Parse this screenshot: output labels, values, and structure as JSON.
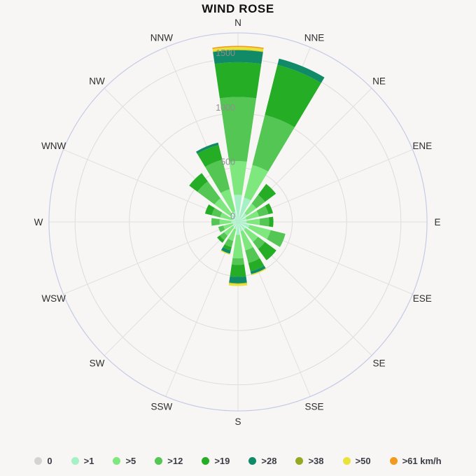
{
  "title": "WIND ROSE",
  "chart_data": {
    "type": "windrose_stacked_polar_bar",
    "title": "WIND ROSE",
    "units": "km/h",
    "radial_ticks": [
      0,
      500,
      1000,
      1500
    ],
    "radial_max": 1740,
    "grid": true,
    "legend_position": "bottom",
    "bins": [
      {
        "label": "0",
        "legend_label": "0",
        "color": "#d7d2d2"
      },
      {
        "label": ">1",
        "legend_label": ">1",
        "color": "#a4f1c5"
      },
      {
        "label": ">5",
        "legend_label": ">5",
        "color": "#7ee87e"
      },
      {
        "label": ">12",
        "legend_label": ">12",
        "color": "#53c653"
      },
      {
        "label": ">19",
        "legend_label": ">19",
        "color": "#25ad25"
      },
      {
        "label": ">28",
        "legend_label": ">28",
        "color": "#108a67"
      },
      {
        "label": ">38",
        "legend_label": ">38",
        "color": "#94aa20"
      },
      {
        "label": ">50",
        "legend_label": ">50",
        "color": "#e9e23a"
      },
      {
        "label": ">61",
        "legend_label": ">61 km/h",
        "color": "#f39a1e"
      }
    ],
    "directions": [
      "N",
      "NNE",
      "NE",
      "ENE",
      "E",
      "ESE",
      "SE",
      "SSE",
      "S",
      "SSW",
      "SW",
      "WSW",
      "W",
      "WNW",
      "NW",
      "NNW"
    ],
    "series": [
      {
        "direction": "N",
        "values": [
          0,
          250,
          310,
          590,
          320,
          110,
          5,
          25,
          10
        ]
      },
      {
        "direction": "NNE",
        "values": [
          0,
          230,
          310,
          475,
          475,
          60,
          0,
          0,
          0
        ]
      },
      {
        "direction": "NE",
        "values": [
          0,
          100,
          110,
          100,
          125,
          0,
          0,
          0,
          0
        ]
      },
      {
        "direction": "ENE",
        "values": [
          0,
          80,
          120,
          90,
          42,
          0,
          0,
          0,
          0
        ]
      },
      {
        "direction": "E",
        "values": [
          0,
          80,
          120,
          86,
          40,
          0,
          0,
          0,
          0
        ]
      },
      {
        "direction": "ESE",
        "values": [
          0,
          110,
          200,
          140,
          0,
          0,
          0,
          0,
          0
        ]
      },
      {
        "direction": "SE",
        "values": [
          0,
          90,
          140,
          80,
          130,
          0,
          0,
          0,
          0
        ]
      },
      {
        "direction": "SSE",
        "values": [
          0,
          90,
          180,
          120,
          80,
          27,
          0,
          10,
          0
        ]
      },
      {
        "direction": "S",
        "values": [
          0,
          120,
          216,
          60,
          110,
          58,
          6,
          20,
          0
        ]
      },
      {
        "direction": "SSW",
        "values": [
          0,
          70,
          110,
          60,
          30,
          32,
          0,
          10,
          0
        ]
      },
      {
        "direction": "SW",
        "values": [
          0,
          60,
          100,
          50,
          30,
          0,
          0,
          0,
          0
        ]
      },
      {
        "direction": "WSW",
        "values": [
          0,
          50,
          90,
          47,
          0,
          0,
          0,
          0,
          0
        ]
      },
      {
        "direction": "W",
        "values": [
          0,
          60,
          110,
          75,
          0,
          0,
          0,
          0,
          0
        ]
      },
      {
        "direction": "WNW",
        "values": [
          0,
          60,
          110,
          80,
          63,
          0,
          0,
          0,
          0
        ]
      },
      {
        "direction": "NW",
        "values": [
          0,
          90,
          180,
          195,
          95,
          0,
          0,
          0,
          0
        ]
      },
      {
        "direction": "NNW",
        "values": [
          0,
          100,
          210,
          280,
          140,
          23,
          0,
          0,
          0
        ]
      }
    ],
    "style": {
      "background": "#f7f6f4",
      "grid_circle_color": "#dcdcda",
      "spoke_color": "#e2e0dd",
      "outer_circle_color": "#c5cae6",
      "direction_label_color": "#2e2e2e",
      "radial_tick_color": "#8e8e8e",
      "title_color": "#111111",
      "legend_text_color": "#3c3c46"
    }
  }
}
